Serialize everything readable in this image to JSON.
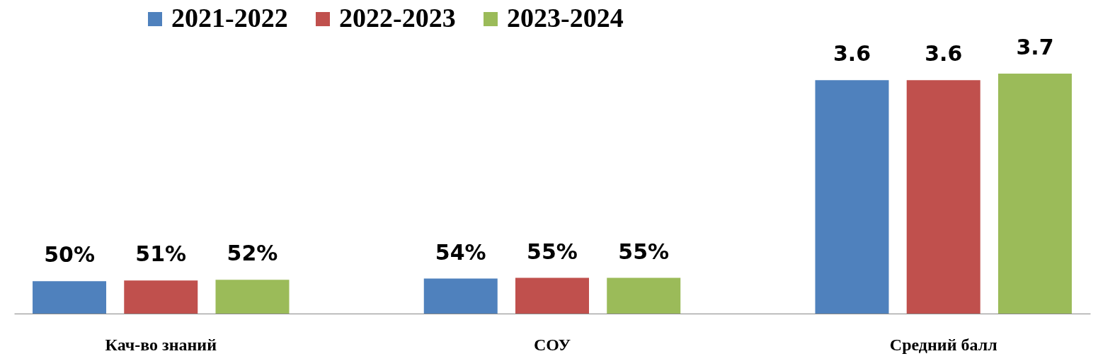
{
  "chart_data": {
    "type": "bar",
    "categories": [
      "Кач-во знаний",
      "СОУ",
      "Средний балл"
    ],
    "legend": "top",
    "series": [
      {
        "name": "2021-2022",
        "color": "#4f81bd",
        "values": [
          0.5,
          0.54,
          3.6
        ],
        "value_labels": [
          "50%",
          "54%",
          "3.6"
        ]
      },
      {
        "name": "2022-2023",
        "color": "#c0504d",
        "values": [
          0.51,
          0.55,
          3.6
        ],
        "value_labels": [
          "51%",
          "55%",
          "3.6"
        ]
      },
      {
        "name": "2023-2024",
        "color": "#9bbb59",
        "values": [
          0.52,
          0.55,
          3.7
        ],
        "value_labels": [
          "52%",
          "55%",
          "3.7"
        ]
      }
    ]
  }
}
